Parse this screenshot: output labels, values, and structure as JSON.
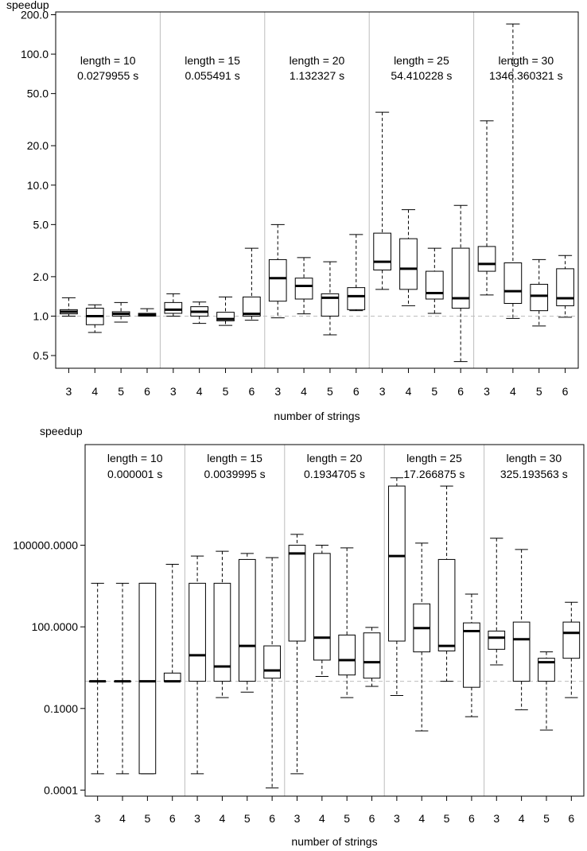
{
  "chart_data": [
    {
      "type": "boxplot",
      "ylabel": "speedup",
      "xlabel": "number of strings",
      "yscale": "log",
      "ylim": [
        0.4,
        210
      ],
      "yticks": [
        0.5,
        1.0,
        2.0,
        5.0,
        10.0,
        20.0,
        50.0,
        100.0,
        200.0
      ],
      "ytick_labels": [
        "0.5",
        "1.0",
        "2.0",
        "5.0",
        "10.0",
        "20.0",
        "50.0",
        "100.0",
        "200.0"
      ],
      "x_tick_labels": [
        "3",
        "4",
        "5",
        "6",
        "3",
        "4",
        "5",
        "6",
        "3",
        "4",
        "5",
        "6",
        "3",
        "4",
        "5",
        "6",
        "3",
        "4",
        "5",
        "6"
      ],
      "reference_line": 1.0,
      "groups": [
        {
          "label": "length = 10",
          "time": "0.0279955 s"
        },
        {
          "label": "length = 15",
          "time": "0.055491 s"
        },
        {
          "label": "length = 20",
          "time": "1.132327 s"
        },
        {
          "label": "length = 25",
          "time": "54.410228 s"
        },
        {
          "label": "length = 30",
          "time": "1346.360321 s"
        }
      ],
      "boxes": [
        {
          "group": 0,
          "n": 3,
          "min": 1.0,
          "q1": 1.04,
          "median": 1.08,
          "q3": 1.12,
          "max": 1.38
        },
        {
          "group": 0,
          "n": 4,
          "min": 0.75,
          "q1": 0.86,
          "median": 1.0,
          "q3": 1.15,
          "max": 1.22
        },
        {
          "group": 0,
          "n": 5,
          "min": 0.9,
          "q1": 1.0,
          "median": 1.04,
          "q3": 1.08,
          "max": 1.27
        },
        {
          "group": 0,
          "n": 6,
          "min": 1.0,
          "q1": 1.0,
          "median": 1.02,
          "q3": 1.05,
          "max": 1.14
        },
        {
          "group": 1,
          "n": 3,
          "min": 1.0,
          "q1": 1.05,
          "median": 1.12,
          "q3": 1.27,
          "max": 1.48
        },
        {
          "group": 1,
          "n": 4,
          "min": 0.88,
          "q1": 1.0,
          "median": 1.08,
          "q3": 1.18,
          "max": 1.28
        },
        {
          "group": 1,
          "n": 5,
          "min": 0.85,
          "q1": 0.92,
          "median": 0.95,
          "q3": 1.07,
          "max": 1.4
        },
        {
          "group": 1,
          "n": 6,
          "min": 0.93,
          "q1": 1.0,
          "median": 1.04,
          "q3": 1.4,
          "max": 3.3
        },
        {
          "group": 2,
          "n": 3,
          "min": 0.97,
          "q1": 1.3,
          "median": 1.95,
          "q3": 2.7,
          "max": 5.0
        },
        {
          "group": 2,
          "n": 4,
          "min": 1.04,
          "q1": 1.35,
          "median": 1.7,
          "q3": 1.95,
          "max": 2.8
        },
        {
          "group": 2,
          "n": 5,
          "min": 0.72,
          "q1": 1.0,
          "median": 1.38,
          "q3": 1.48,
          "max": 2.6
        },
        {
          "group": 2,
          "n": 6,
          "min": 1.1,
          "q1": 1.12,
          "median": 1.42,
          "q3": 1.65,
          "max": 4.2
        },
        {
          "group": 3,
          "n": 3,
          "min": 1.6,
          "q1": 2.25,
          "median": 2.6,
          "q3": 4.3,
          "max": 36
        },
        {
          "group": 3,
          "n": 4,
          "min": 1.2,
          "q1": 1.6,
          "median": 2.3,
          "q3": 3.9,
          "max": 6.5
        },
        {
          "group": 3,
          "n": 5,
          "min": 1.05,
          "q1": 1.35,
          "median": 1.5,
          "q3": 2.2,
          "max": 3.3
        },
        {
          "group": 3,
          "n": 6,
          "min": 0.45,
          "q1": 1.15,
          "median": 1.37,
          "q3": 3.3,
          "max": 7.0
        },
        {
          "group": 4,
          "n": 3,
          "min": 1.45,
          "q1": 2.2,
          "median": 2.5,
          "q3": 3.4,
          "max": 31
        },
        {
          "group": 4,
          "n": 4,
          "min": 0.96,
          "q1": 1.25,
          "median": 1.55,
          "q3": 2.55,
          "max": 170
        },
        {
          "group": 4,
          "n": 5,
          "min": 0.84,
          "q1": 1.1,
          "median": 1.43,
          "q3": 1.75,
          "max": 2.7
        },
        {
          "group": 4,
          "n": 6,
          "min": 0.98,
          "q1": 1.2,
          "median": 1.37,
          "q3": 2.3,
          "max": 2.9
        }
      ]
    },
    {
      "type": "boxplot",
      "ylabel": "speedup",
      "xlabel": "number of strings",
      "yscale": "log",
      "ylim": [
        6e-05,
        500000000
      ],
      "yticks": [
        0.0001,
        0.1,
        100,
        100000
      ],
      "ytick_labels": [
        "0.0001",
        "0.1000",
        "100.0000",
        "100000.0000"
      ],
      "x_tick_labels": [
        "3",
        "4",
        "5",
        "6",
        "3",
        "4",
        "5",
        "6",
        "3",
        "4",
        "5",
        "6",
        "3",
        "4",
        "5",
        "6",
        "3",
        "4",
        "5",
        "6"
      ],
      "reference_line": 1.0,
      "groups": [
        {
          "label": "length = 10",
          "time": "0.000001 s"
        },
        {
          "label": "length = 15",
          "time": "0.0039995 s"
        },
        {
          "label": "length = 20",
          "time": "0.1934705 s"
        },
        {
          "label": "length = 25",
          "time": "17.266875 s"
        },
        {
          "label": "length = 30",
          "time": "325.193563 s"
        }
      ],
      "boxes": [
        {
          "group": 0,
          "n": 3,
          "min": 0.0004,
          "q1": 1.0,
          "median": 1.0,
          "q3": 1.0,
          "max": 4000
        },
        {
          "group": 0,
          "n": 4,
          "min": 0.0004,
          "q1": 1.0,
          "median": 1.0,
          "q3": 1.0,
          "max": 4000
        },
        {
          "group": 0,
          "n": 5,
          "min": 0.0004,
          "q1": 0.0004,
          "median": 1.0,
          "q3": 4000,
          "max": 4000
        },
        {
          "group": 0,
          "n": 6,
          "min": 1.0,
          "q1": 1.0,
          "median": 1.0,
          "q3": 2.0,
          "max": 20000
        },
        {
          "group": 1,
          "n": 3,
          "min": 0.0004,
          "q1": 1.0,
          "median": 9,
          "q3": 4000,
          "max": 40000
        },
        {
          "group": 1,
          "n": 4,
          "min": 0.25,
          "q1": 1.0,
          "median": 3.5,
          "q3": 4000,
          "max": 60000
        },
        {
          "group": 1,
          "n": 5,
          "min": 0.4,
          "q1": 1.0,
          "median": 20,
          "q3": 30000,
          "max": 50000
        },
        {
          "group": 1,
          "n": 6,
          "min": 0.00012,
          "q1": 1.3,
          "median": 2.5,
          "q3": 20,
          "max": 35000
        },
        {
          "group": 2,
          "n": 3,
          "min": 0.0004,
          "q1": 30,
          "median": 50000,
          "q3": 100000,
          "max": 250000
        },
        {
          "group": 2,
          "n": 4,
          "min": 1.5,
          "q1": 6,
          "median": 40,
          "q3": 50000,
          "max": 100000
        },
        {
          "group": 2,
          "n": 5,
          "min": 0.25,
          "q1": 1.7,
          "median": 6,
          "q3": 50,
          "max": 80000
        },
        {
          "group": 2,
          "n": 6,
          "min": 0.65,
          "q1": 1.3,
          "median": 5,
          "q3": 60,
          "max": 95
        },
        {
          "group": 3,
          "n": 3,
          "min": 0.3,
          "q1": 30,
          "median": 40000,
          "q3": 15000000,
          "max": 30000000
        },
        {
          "group": 3,
          "n": 4,
          "min": 0.015,
          "q1": 12,
          "median": 90,
          "q3": 700,
          "max": 120000
        },
        {
          "group": 3,
          "n": 5,
          "min": 1.0,
          "q1": 13,
          "median": 20,
          "q3": 30000,
          "max": 15000000
        },
        {
          "group": 3,
          "n": 6,
          "min": 0.05,
          "q1": 0.6,
          "median": 70,
          "q3": 140,
          "max": 1600
        },
        {
          "group": 4,
          "n": 3,
          "min": 4,
          "q1": 15,
          "median": 40,
          "q3": 70,
          "max": 180000
        },
        {
          "group": 4,
          "n": 4,
          "min": 0.09,
          "q1": 1.0,
          "median": 35,
          "q3": 150,
          "max": 70000
        },
        {
          "group": 4,
          "n": 5,
          "min": 0.016,
          "q1": 1.0,
          "median": 5,
          "q3": 7,
          "max": 12
        },
        {
          "group": 4,
          "n": 6,
          "min": 0.25,
          "q1": 7,
          "median": 60,
          "q3": 150,
          "max": 800
        }
      ]
    }
  ]
}
